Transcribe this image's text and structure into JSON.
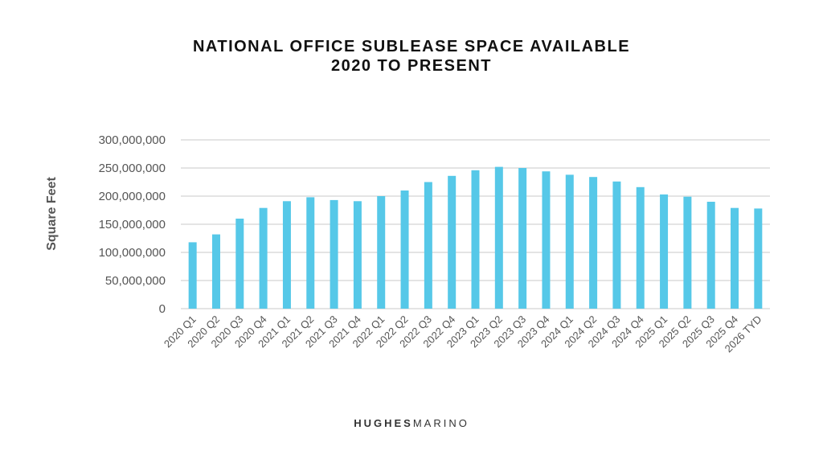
{
  "chart_data": {
    "type": "bar",
    "title": "NATIONAL OFFICE SUBLEASE SPACE AVAILABLE",
    "subtitle": "2020 TO PRESENT",
    "xlabel": "",
    "ylabel": "Square Feet",
    "ylim": [
      0,
      300000000
    ],
    "yticks": [
      0,
      50000000,
      100000000,
      150000000,
      200000000,
      250000000,
      300000000
    ],
    "ytick_labels": [
      "0",
      "50,000,000",
      "100,000,000",
      "150,000,000",
      "200,000,000",
      "250,000,000",
      "300,000,000"
    ],
    "grid": true,
    "bar_color": "#56c8e8",
    "categories": [
      "2020 Q1",
      "2020 Q2",
      "2020 Q3",
      "2020 Q4",
      "2021 Q1",
      "2021 Q2",
      "2021 Q3",
      "2021 Q4",
      "2022 Q1",
      "2022 Q2",
      "2022 Q3",
      "2022 Q4",
      "2023 Q1",
      "2023 Q2",
      "2023 Q3",
      "2023 Q4",
      "2024 Q1",
      "2024 Q2",
      "2024 Q3",
      "2024 Q4",
      "2025 Q1",
      "2025 Q2",
      "2025 Q3",
      "2025 Q4",
      "2026 TYD"
    ],
    "values": [
      118000000,
      132000000,
      160000000,
      179000000,
      191000000,
      198000000,
      193000000,
      191000000,
      200000000,
      210000000,
      225000000,
      236000000,
      246000000,
      252000000,
      250000000,
      244000000,
      238000000,
      234000000,
      226000000,
      216000000,
      203000000,
      199000000,
      190000000,
      179000000,
      178000000
    ]
  },
  "logo": {
    "part1": "HUGHES",
    "part2": "MARINO"
  }
}
